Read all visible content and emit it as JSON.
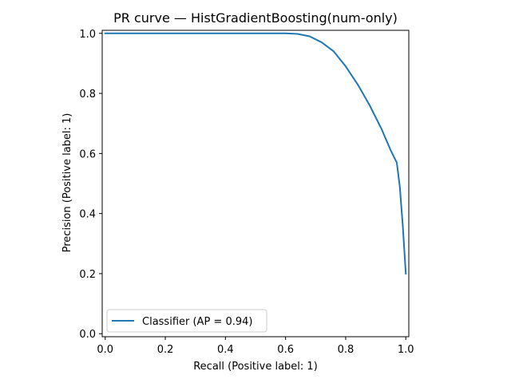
{
  "chart_data": {
    "type": "line",
    "title": "PR curve — HistGradientBoosting(num-only)",
    "xlabel": "Recall (Positive label: 1)",
    "ylabel": "Precision (Positive label: 1)",
    "xlim": [
      -0.01,
      1.01
    ],
    "ylim": [
      -0.01,
      1.01
    ],
    "xticks": [
      0.0,
      0.2,
      0.4,
      0.6,
      0.8,
      1.0
    ],
    "xtick_labels": [
      "0.0",
      "0.2",
      "0.4",
      "0.6",
      "0.8",
      "1.0"
    ],
    "yticks": [
      0.0,
      0.2,
      0.4,
      0.6,
      0.8,
      1.0
    ],
    "ytick_labels": [
      "0.0",
      "0.2",
      "0.4",
      "0.6",
      "0.8",
      "1.0"
    ],
    "grid": false,
    "legend_position": "lower-left",
    "series": [
      {
        "name": "Classifier (AP = 0.94)",
        "color": "#1f77b4",
        "x": [
          0.0,
          0.05,
          0.2,
          0.4,
          0.6,
          0.64,
          0.68,
          0.72,
          0.76,
          0.8,
          0.84,
          0.88,
          0.92,
          0.95,
          0.97,
          0.98,
          0.99,
          1.0
        ],
        "y": [
          1.0,
          1.0,
          1.0,
          1.0,
          1.0,
          0.998,
          0.99,
          0.97,
          0.94,
          0.89,
          0.83,
          0.76,
          0.68,
          0.61,
          0.57,
          0.49,
          0.36,
          0.2
        ]
      }
    ]
  }
}
